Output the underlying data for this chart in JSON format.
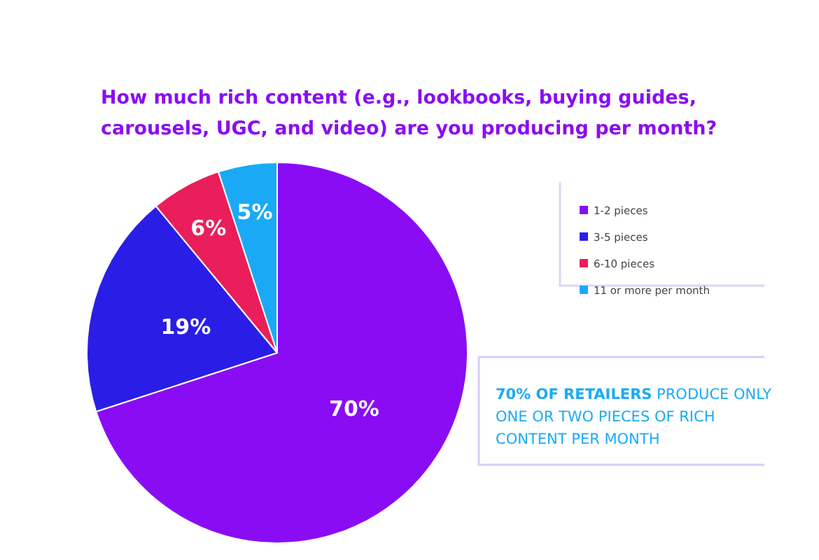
{
  "chart_data": {
    "type": "pie",
    "title": "How much rich content (e.g., lookbooks, buying guides, carousels, UGC, and video) are you producing per month?",
    "categories": [
      "1-2 pieces",
      "3-5 pieces",
      "6-10 pieces",
      "11 or more per month"
    ],
    "values": [
      70,
      19,
      6,
      5
    ],
    "colors": [
      "#8a0cf5",
      "#2a1ee6",
      "#e91e5a",
      "#1aaaf5"
    ],
    "value_labels": [
      "70%",
      "19%",
      "6%",
      "5%"
    ],
    "legend": "right",
    "annotations": [
      "70% OF RETAILERS PRODUCE ONLY ONE OR TWO PIECES OF RICH CONTENT PER MONTH"
    ]
  }
}
